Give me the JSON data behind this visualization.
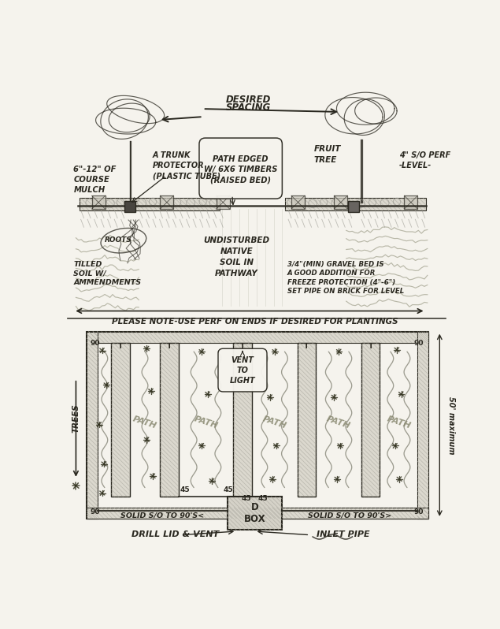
{
  "bg_color": "#f0eee8",
  "paper_color": "#f5f3ed",
  "line_color": "#2a2820",
  "hatch_color": "#aaa89f",
  "light_line": "#888680",
  "title_note": "PLEASE NOTE-USE PERF ON ENDS IF DESIRED FOR PLANTINGS",
  "bottom_label_left": "DRILL LID & VENT",
  "bottom_label_right": "INLET PIPE",
  "solid_left": "SOLID S/O TO 90'S<",
  "solid_right": "SOLID S/O TO 90'S>",
  "d_box_label": "D\nBOX",
  "vent_label": "VENT\nTO\nLIGHT",
  "dimension_right": "50' maximum",
  "desired_spacing": "DESIRED\nSPACING",
  "mulch_label": "6\"-12\" OF\nCOURSE\nMULCH",
  "trunk_label": "A TRUNK\nPROTECTOR\n(PLASTIC TUBE)",
  "path_edged_label": "PATH EDGED\nW/ 6X6 TIMBERS\n(RAISED BED)",
  "fruit_tree_label": "FRUIT\nTREE",
  "perf_label": "4\" S/O PERF\n-LEVEL-",
  "undisturbed_label": "UNDISTURBED\nNATIVE\nSOIL IN\nPATHWAY",
  "tilled_label": "TILLED\nSOIL W/\nAMMENDMENTS",
  "gravel_label": "3/4\"(MIN) GRAVEL BED IS\nA GOOD ADDITION FOR\nFREEZE PROTECTION (4\"-6\")\nSET PIPE ON BRICK FOR LEVEL",
  "trees_label": "TREES"
}
